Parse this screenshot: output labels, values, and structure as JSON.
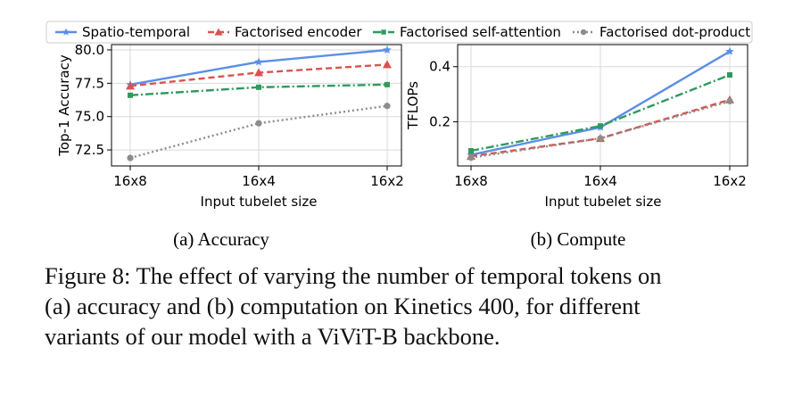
{
  "chart_data": [
    {
      "type": "line",
      "title": "",
      "subcaption": "(a) Accuracy",
      "xlabel": "Input tubelet size",
      "ylabel": "Top-1 Accuracy",
      "categories": [
        "16x8",
        "16x4",
        "16x2"
      ],
      "yticks": [
        "72.5",
        "75.0",
        "77.5",
        "80.0"
      ],
      "ylim": [
        71.3,
        80.4
      ],
      "grid": true,
      "series": [
        {
          "name": "Spatio-temporal",
          "color": "#5b8fe6",
          "marker": "star",
          "dash": "solid",
          "values": [
            77.4,
            79.1,
            80.0
          ]
        },
        {
          "name": "Factorised encoder",
          "color": "#d9534f",
          "marker": "triangle",
          "dash": "dash",
          "values": [
            77.3,
            78.3,
            78.9
          ]
        },
        {
          "name": "Factorised self-attention",
          "color": "#2e9a5d",
          "marker": "square",
          "dash": "dashdot",
          "values": [
            76.6,
            77.2,
            77.4
          ]
        },
        {
          "name": "Factorised dot-product",
          "color": "#8c8c8c",
          "marker": "circle",
          "dash": "dot",
          "values": [
            71.9,
            74.5,
            75.8
          ]
        }
      ]
    },
    {
      "type": "line",
      "title": "",
      "subcaption": "(b) Compute",
      "xlabel": "Input tubelet size",
      "ylabel": "TFLOPs",
      "categories": [
        "16x8",
        "16x4",
        "16x2"
      ],
      "yticks": [
        "0.2",
        "0.4"
      ],
      "ylim": [
        0.04,
        0.48
      ],
      "grid": true,
      "series": [
        {
          "name": "Spatio-temporal",
          "color": "#5b8fe6",
          "marker": "star",
          "dash": "solid",
          "values": [
            0.08,
            0.18,
            0.455
          ]
        },
        {
          "name": "Factorised encoder",
          "color": "#d9534f",
          "marker": "triangle",
          "dash": "dash",
          "values": [
            0.075,
            0.14,
            0.28
          ]
        },
        {
          "name": "Factorised self-attention",
          "color": "#2e9a5d",
          "marker": "square",
          "dash": "dashdot",
          "values": [
            0.095,
            0.185,
            0.37
          ]
        },
        {
          "name": "Factorised dot-product",
          "color": "#8c8c8c",
          "marker": "circle",
          "dash": "dot",
          "values": [
            0.07,
            0.14,
            0.275
          ]
        }
      ]
    }
  ],
  "legend": {
    "position": "top",
    "entries": [
      "Spatio-temporal",
      "Factorised encoder",
      "Factorised self-attention",
      "Factorised dot-product"
    ]
  },
  "caption": {
    "lines": [
      "Figure 8: The effect of varying the number of temporal tokens on",
      "(a) accuracy and (b) computation on Kinetics 400, for different",
      "variants of our model with a ViViT-B backbone."
    ]
  }
}
